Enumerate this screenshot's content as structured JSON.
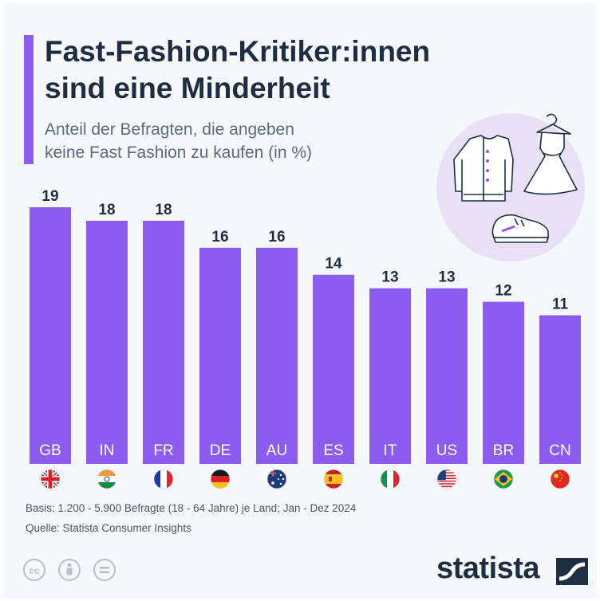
{
  "header": {
    "title_line1": "Fast-Fashion-Kritiker:innen",
    "title_line2": "sind eine Minderheit",
    "subtitle_line1": "Anteil der Befragten, die angeben",
    "subtitle_line2": "keine Fast Fashion zu kaufen (in %)"
  },
  "chart_data": {
    "type": "bar",
    "title": "Fast-Fashion-Kritiker:innen sind eine Minderheit",
    "subtitle": "Anteil der Befragten, die angeben keine Fast Fashion zu kaufen (in %)",
    "categories": [
      "GB",
      "IN",
      "FR",
      "DE",
      "AU",
      "ES",
      "IT",
      "US",
      "BR",
      "CN"
    ],
    "values": [
      19,
      18,
      18,
      16,
      16,
      14,
      13,
      13,
      12,
      11
    ],
    "xlabel": "",
    "ylabel": "",
    "ylim": [
      0,
      19
    ],
    "grid": false,
    "bar_color": "#8c5cf0",
    "flags": [
      "uk-flag-icon",
      "india-flag-icon",
      "france-flag-icon",
      "germany-flag-icon",
      "australia-flag-icon",
      "spain-flag-icon",
      "italy-flag-icon",
      "usa-flag-icon",
      "brazil-flag-icon",
      "china-flag-icon"
    ]
  },
  "footer": {
    "basis": "Basis: 1.200 - 5.900 Befragte (18 - 64 Jahre) je Land; Jan - Dez 2024",
    "source": "Quelle: Statista Consumer Insights",
    "brand": "statista"
  },
  "colors": {
    "accent": "#8c5cf0",
    "title": "#1e2e40",
    "subtitle": "#5b6b7c",
    "background": "#f5f8fa",
    "illustration_circle": "#e8e0f4"
  }
}
